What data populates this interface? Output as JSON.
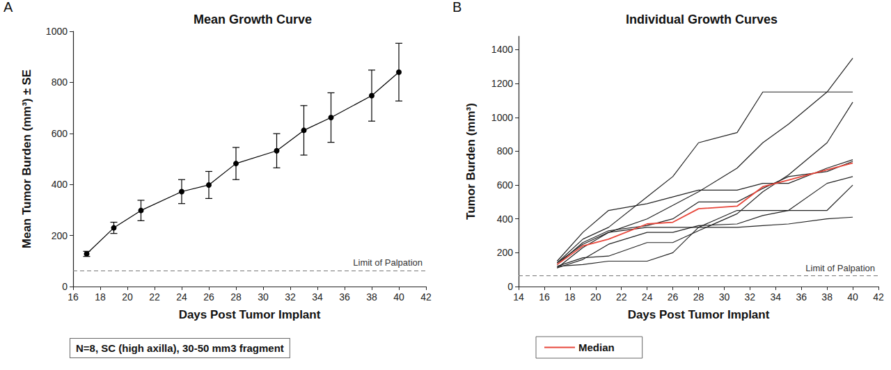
{
  "chart_data": [
    {
      "type": "line",
      "panel_label": "A",
      "title": "Mean Growth Curve",
      "x_label": "Days Post Tumor Implant",
      "y_label": "Mean Tumor Burden (mm³) ± SE",
      "note": "N=8, SC (high axilla), 30-50 mm3 fragment",
      "reference_line": {
        "value": 63,
        "label": "Limit of Palpation"
      },
      "x": [
        17,
        19,
        21,
        24,
        26,
        28,
        31,
        33,
        35,
        38,
        40
      ],
      "series": [
        {
          "color": "#000000",
          "marker": "circle",
          "line_style": "solid",
          "values": [
            128,
            230,
            298,
            372,
            398,
            482,
            532,
            612,
            662,
            748,
            840
          ],
          "errors": [
            10,
            22,
            40,
            47,
            53,
            63,
            67,
            97,
            97,
            100,
            113
          ]
        }
      ],
      "xlim": [
        16,
        42
      ],
      "xticks": [
        16,
        18,
        20,
        22,
        24,
        26,
        28,
        30,
        32,
        34,
        36,
        38,
        40,
        42
      ],
      "ylim": [
        0,
        1000
      ],
      "yticks": [
        0,
        200,
        400,
        600,
        800,
        1000
      ],
      "grid": false
    },
    {
      "type": "line",
      "panel_label": "B",
      "title": "Individual Growth Curves",
      "x_label": "Days Post Tumor Implant",
      "y_label": "Tumor Burden (mm³)",
      "reference_line": {
        "value": 63,
        "label": "Limit of Palpation"
      },
      "x": [
        17,
        19,
        21,
        24,
        26,
        28,
        31,
        33,
        35,
        38,
        40
      ],
      "series": [
        {
          "color": "#222222",
          "marker": "none",
          "line_style": "solid",
          "values": [
            140,
            280,
            350,
            530,
            650,
            850,
            910,
            1150,
            1150,
            1150,
            1150
          ]
        },
        {
          "color": "#222222",
          "marker": "none",
          "line_style": "solid",
          "values": [
            140,
            250,
            320,
            400,
            480,
            560,
            700,
            850,
            960,
            1150,
            1350
          ]
        },
        {
          "color": "#222222",
          "marker": "none",
          "line_style": "solid",
          "values": [
            120,
            170,
            180,
            260,
            260,
            330,
            430,
            560,
            660,
            850,
            1090
          ]
        },
        {
          "color": "#222222",
          "marker": "none",
          "line_style": "solid",
          "values": [
            150,
            320,
            450,
            490,
            530,
            570,
            570,
            610,
            610,
            700,
            750
          ]
        },
        {
          "color": "#222222",
          "marker": "none",
          "line_style": "solid",
          "values": [
            130,
            260,
            330,
            360,
            400,
            500,
            500,
            580,
            650,
            680,
            740
          ]
        },
        {
          "color": "#222222",
          "marker": "none",
          "line_style": "solid",
          "values": [
            110,
            160,
            250,
            320,
            320,
            360,
            370,
            420,
            450,
            610,
            650
          ]
        },
        {
          "color": "#222222",
          "marker": "none",
          "line_style": "solid",
          "values": [
            120,
            130,
            150,
            150,
            200,
            350,
            450,
            450,
            450,
            450,
            600
          ]
        },
        {
          "color": "#222222",
          "marker": "none",
          "line_style": "solid",
          "values": [
            110,
            230,
            320,
            350,
            350,
            350,
            350,
            360,
            370,
            400,
            410
          ]
        },
        {
          "name": "Median",
          "color": "#e8463a",
          "marker": "none",
          "line_style": "solid",
          "values": [
            130,
            240,
            280,
            370,
            380,
            460,
            475,
            590,
            630,
            690,
            730
          ]
        }
      ],
      "xlim": [
        14,
        42
      ],
      "xticks": [
        14,
        16,
        18,
        20,
        22,
        24,
        26,
        28,
        30,
        32,
        34,
        36,
        38,
        40,
        42
      ],
      "ylim": [
        0,
        1480
      ],
      "yticks": [
        0,
        200,
        400,
        600,
        800,
        1000,
        1200,
        1400
      ],
      "grid": false,
      "legend": "bottom"
    }
  ]
}
